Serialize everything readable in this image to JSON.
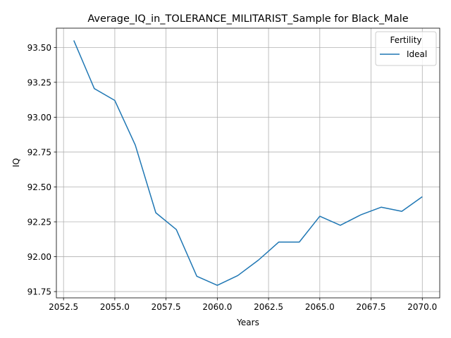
{
  "chart_data": {
    "type": "line",
    "title": "Average_IQ_in_TOLERANCE_MILITARIST_Sample for Black_Male",
    "xlabel": "Years",
    "ylabel": "IQ",
    "xlim": [
      2052.15,
      2070.85
    ],
    "ylim": [
      91.705,
      93.638
    ],
    "x_ticks": [
      "2052.5",
      "2055.0",
      "2057.5",
      "2060.0",
      "2062.5",
      "2065.0",
      "2067.5",
      "2070.0"
    ],
    "x_tick_values": [
      2052.5,
      2055.0,
      2057.5,
      2060.0,
      2062.5,
      2065.0,
      2067.5,
      2070.0
    ],
    "y_ticks": [
      "91.75",
      "92.00",
      "92.25",
      "92.50",
      "92.75",
      "93.00",
      "93.25",
      "93.50"
    ],
    "y_tick_values": [
      91.75,
      92.0,
      92.25,
      92.5,
      92.75,
      93.0,
      93.25,
      93.5
    ],
    "grid": true,
    "legend": {
      "title": "Fertility",
      "placement": "top-right"
    },
    "series": [
      {
        "name": "Ideal",
        "color": "#1f77b4",
        "x": [
          2053,
          2054,
          2055,
          2056,
          2057,
          2058,
          2059,
          2060,
          2061,
          2062,
          2063,
          2064,
          2065,
          2066,
          2067,
          2068,
          2069,
          2070
        ],
        "y": [
          93.55,
          93.205,
          93.12,
          92.8,
          92.315,
          92.195,
          91.86,
          91.795,
          91.865,
          91.975,
          92.105,
          92.105,
          92.29,
          92.225,
          92.3,
          92.355,
          92.325,
          92.43
        ]
      }
    ]
  }
}
